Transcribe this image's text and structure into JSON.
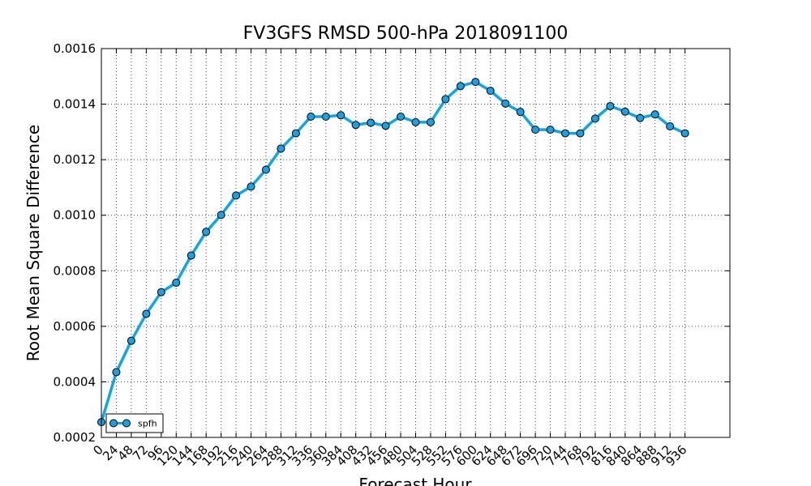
{
  "chart_data": {
    "type": "line",
    "title": "FV3GFS RMSD 500-hPa 2018091100",
    "xlabel": "Forecast Hour",
    "ylabel": "Root Mean Square Difference",
    "xlim": [
      0,
      1008
    ],
    "ylim": [
      0.0002,
      0.0016
    ],
    "yticks": [
      "0.0002",
      "0.0004",
      "0.0006",
      "0.0008",
      "0.0010",
      "0.0012",
      "0.0014",
      "0.0016"
    ],
    "xticks": [
      "0",
      "24",
      "48",
      "72",
      "96",
      "120",
      "144",
      "168",
      "192",
      "216",
      "240",
      "264",
      "288",
      "312",
      "336",
      "360",
      "384",
      "408",
      "432",
      "456",
      "480",
      "504",
      "528",
      "552",
      "576",
      "600",
      "624",
      "648",
      "672",
      "696",
      "720",
      "744",
      "768",
      "792",
      "816",
      "840",
      "864",
      "888",
      "912",
      "936"
    ],
    "grid": true,
    "legend_position": "lower-left",
    "series": [
      {
        "name": "spfh",
        "color": "#0ea5e9",
        "marker_color": "#1ba1e2",
        "x": [
          0,
          24,
          48,
          72,
          96,
          120,
          144,
          168,
          192,
          216,
          240,
          264,
          288,
          312,
          336,
          360,
          384,
          408,
          432,
          456,
          480,
          504,
          528,
          552,
          576,
          600,
          624,
          648,
          672,
          696,
          720,
          744,
          768,
          792,
          816,
          840,
          864,
          888,
          912,
          936
        ],
        "y": [
          0.000255,
          0.000435,
          0.000548,
          0.000645,
          0.000723,
          0.000757,
          0.000855,
          0.00094,
          0.001001,
          0.001071,
          0.001103,
          0.001164,
          0.00124,
          0.001295,
          0.001355,
          0.001355,
          0.00136,
          0.001325,
          0.001333,
          0.001322,
          0.001355,
          0.001335,
          0.001335,
          0.001418,
          0.001465,
          0.00148,
          0.001448,
          0.001402,
          0.001372,
          0.001308,
          0.001308,
          0.001295,
          0.001295,
          0.001348,
          0.001393,
          0.001373,
          0.00135,
          0.001363,
          0.00132,
          0.001295
        ]
      }
    ]
  }
}
